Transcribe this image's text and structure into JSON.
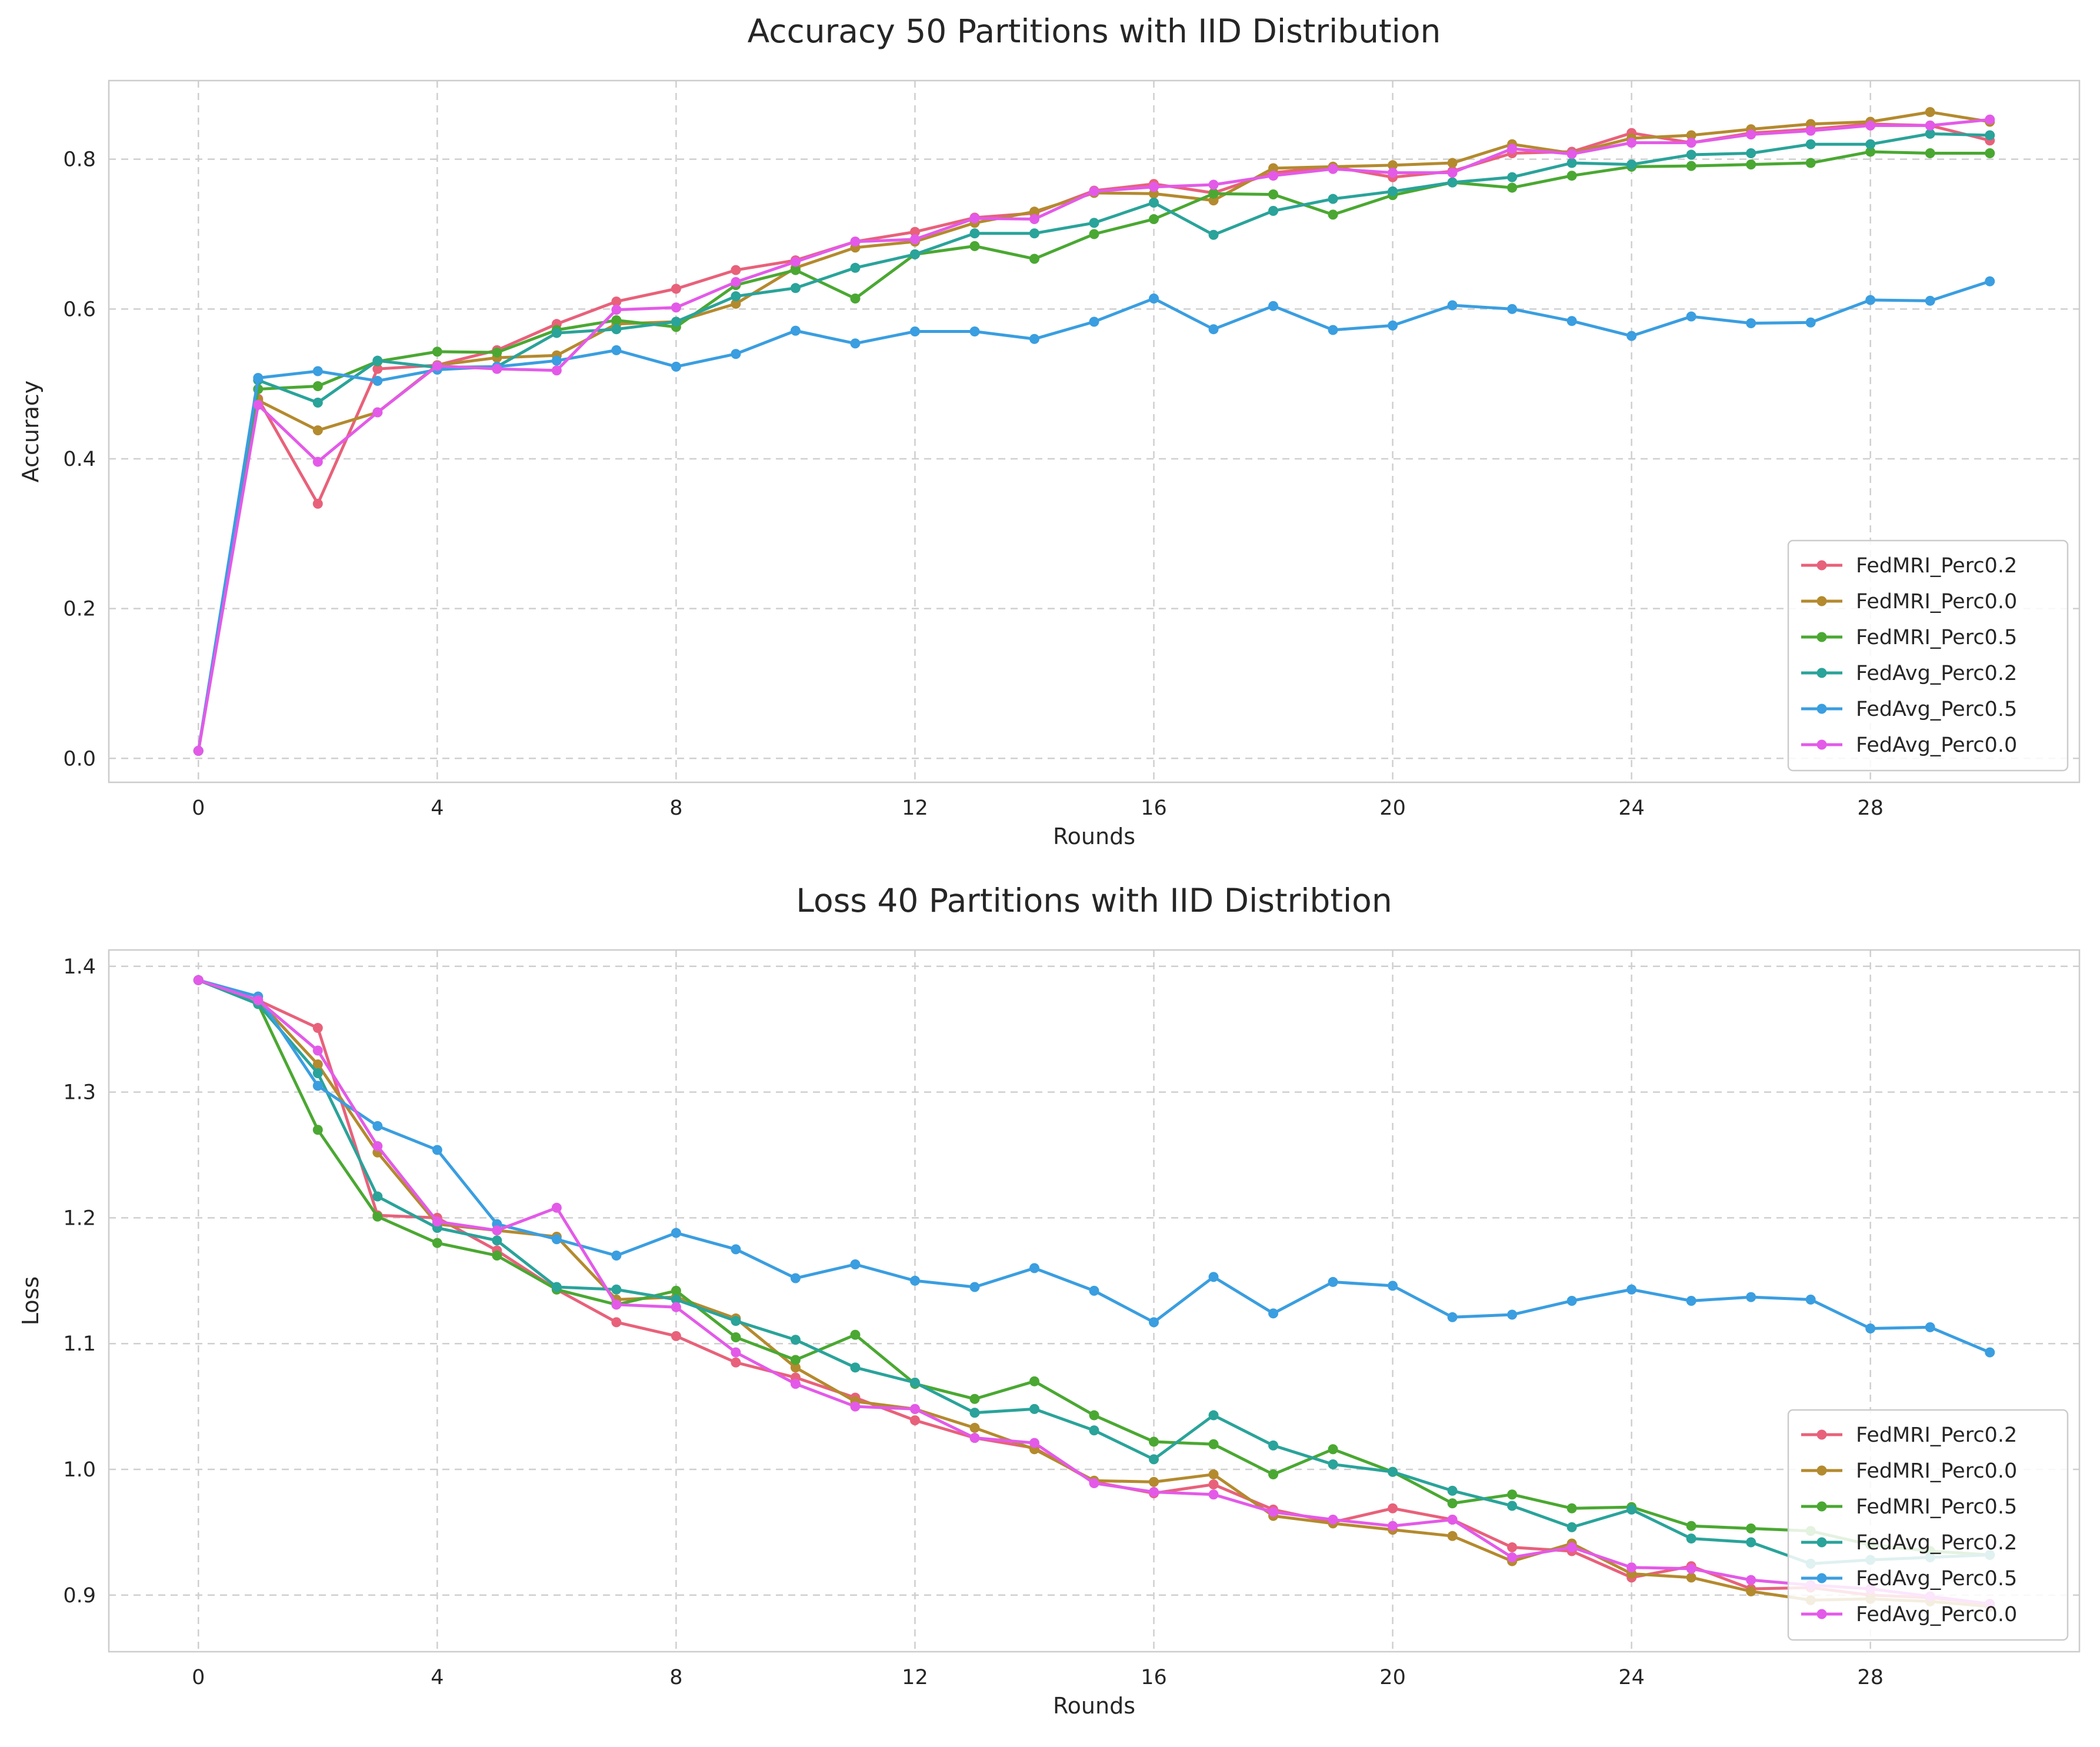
{
  "chart_data": [
    {
      "type": "line",
      "title": "Accuracy 50 Partitions with IID Distribution",
      "xlabel": "Rounds",
      "ylabel": "Accuracy",
      "xlim": [
        -1.5,
        31.5
      ],
      "ylim": [
        -0.032,
        0.905
      ],
      "xticks": [
        0,
        4,
        8,
        12,
        16,
        20,
        24,
        28
      ],
      "yticks": [
        0.0,
        0.2,
        0.4,
        0.6,
        0.8
      ],
      "ytick_labels": [
        "0.0",
        "0.2",
        "0.4",
        "0.6",
        "0.8"
      ],
      "grid": true,
      "legend_position": "lower-right",
      "x": [
        0,
        1,
        2,
        3,
        4,
        5,
        6,
        7,
        8,
        9,
        10,
        11,
        12,
        13,
        14,
        15,
        16,
        17,
        18,
        19,
        20,
        21,
        22,
        23,
        24,
        25,
        26,
        27,
        28,
        29,
        30
      ],
      "series": [
        {
          "name": "FedMRI_Perc0.2",
          "color": "#e8617a",
          "values": [
            0.01,
            0.48,
            0.34,
            0.52,
            0.525,
            0.545,
            0.58,
            0.61,
            0.627,
            0.652,
            0.665,
            0.69,
            0.703,
            0.722,
            0.728,
            0.758,
            0.767,
            0.755,
            0.782,
            0.79,
            0.776,
            0.784,
            0.808,
            0.81,
            0.835,
            0.822,
            0.835,
            0.84,
            0.847,
            0.845,
            0.825
          ]
        },
        {
          "name": "FedMRI_Perc0.0",
          "color": "#b48a2e",
          "values": [
            0.01,
            0.478,
            0.438,
            0.462,
            0.525,
            0.535,
            0.538,
            0.58,
            0.583,
            0.607,
            0.655,
            0.682,
            0.69,
            0.715,
            0.73,
            0.755,
            0.754,
            0.745,
            0.788,
            0.79,
            0.792,
            0.795,
            0.82,
            0.808,
            0.828,
            0.832,
            0.84,
            0.847,
            0.85,
            0.863,
            0.85
          ]
        },
        {
          "name": "FedMRI_Perc0.5",
          "color": "#4aa832",
          "values": [
            0.01,
            0.493,
            0.497,
            0.53,
            0.543,
            0.542,
            0.572,
            0.585,
            0.576,
            0.632,
            0.652,
            0.614,
            0.673,
            0.684,
            0.667,
            0.7,
            0.72,
            0.754,
            0.753,
            0.726,
            0.752,
            0.769,
            0.762,
            0.778,
            0.79,
            0.791,
            0.793,
            0.795,
            0.81,
            0.808,
            0.808
          ]
        },
        {
          "name": "FedAvg_Perc0.2",
          "color": "#2aa39a",
          "values": [
            0.01,
            0.505,
            0.475,
            0.531,
            0.522,
            0.523,
            0.568,
            0.573,
            0.583,
            0.617,
            0.628,
            0.655,
            0.673,
            0.701,
            0.701,
            0.715,
            0.742,
            0.699,
            0.731,
            0.747,
            0.757,
            0.769,
            0.776,
            0.795,
            0.793,
            0.806,
            0.808,
            0.82,
            0.82,
            0.834,
            0.832
          ]
        },
        {
          "name": "FedAvg_Perc0.5",
          "color": "#3a9ee0",
          "values": [
            0.01,
            0.508,
            0.517,
            0.504,
            0.519,
            0.523,
            0.531,
            0.545,
            0.523,
            0.54,
            0.571,
            0.554,
            0.57,
            0.57,
            0.56,
            0.583,
            0.614,
            0.573,
            0.604,
            0.572,
            0.578,
            0.605,
            0.6,
            0.584,
            0.564,
            0.59,
            0.581,
            0.582,
            0.612,
            0.611,
            0.637
          ]
        },
        {
          "name": "FedAvg_Perc0.0",
          "color": "#e35ae8",
          "values": [
            0.01,
            0.472,
            0.396,
            0.462,
            0.524,
            0.52,
            0.518,
            0.599,
            0.602,
            0.636,
            0.663,
            0.69,
            0.693,
            0.721,
            0.72,
            0.757,
            0.763,
            0.766,
            0.778,
            0.787,
            0.782,
            0.782,
            0.814,
            0.807,
            0.822,
            0.822,
            0.833,
            0.838,
            0.845,
            0.845,
            0.853
          ]
        }
      ]
    },
    {
      "type": "line",
      "title": "Loss 40 Partitions with IID Distribtion",
      "xlabel": "Rounds",
      "ylabel": "Loss",
      "xlim": [
        -1.5,
        31.5
      ],
      "ylim": [
        0.855,
        1.413
      ],
      "xticks": [
        0,
        4,
        8,
        12,
        16,
        20,
        24,
        28
      ],
      "yticks": [
        0.9,
        1.0,
        1.1,
        1.2,
        1.3,
        1.4
      ],
      "ytick_labels": [
        "0.9",
        "1.0",
        "1.1",
        "1.2",
        "1.3",
        "1.4"
      ],
      "grid": true,
      "legend_position": "lower-right",
      "x": [
        0,
        1,
        2,
        3,
        4,
        5,
        6,
        7,
        8,
        9,
        10,
        11,
        12,
        13,
        14,
        15,
        16,
        17,
        18,
        19,
        20,
        21,
        22,
        23,
        24,
        25,
        26,
        27,
        28,
        29,
        30
      ],
      "series": [
        {
          "name": "FedMRI_Perc0.2",
          "color": "#e8617a",
          "values": [
            1.389,
            1.373,
            1.351,
            1.202,
            1.2,
            1.174,
            1.143,
            1.117,
            1.106,
            1.085,
            1.073,
            1.057,
            1.039,
            1.025,
            1.017,
            0.99,
            0.981,
            0.988,
            0.968,
            0.958,
            0.969,
            0.96,
            0.938,
            0.935,
            0.914,
            0.923,
            0.905,
            0.906,
            0.9,
            0.898,
            0.893
          ]
        },
        {
          "name": "FedMRI_Perc0.0",
          "color": "#b48a2e",
          "values": [
            1.389,
            1.373,
            1.322,
            1.252,
            1.195,
            1.19,
            1.185,
            1.135,
            1.137,
            1.12,
            1.081,
            1.054,
            1.048,
            1.033,
            1.016,
            0.991,
            0.99,
            0.996,
            0.963,
            0.957,
            0.952,
            0.947,
            0.927,
            0.941,
            0.917,
            0.914,
            0.903,
            0.896,
            0.897,
            0.895,
            0.891
          ]
        },
        {
          "name": "FedMRI_Perc0.5",
          "color": "#4aa832",
          "values": [
            1.389,
            1.37,
            1.27,
            1.201,
            1.18,
            1.17,
            1.143,
            1.131,
            1.142,
            1.105,
            1.087,
            1.107,
            1.068,
            1.056,
            1.07,
            1.043,
            1.022,
            1.02,
            0.996,
            1.016,
            0.998,
            0.973,
            0.98,
            0.969,
            0.97,
            0.955,
            0.953,
            0.951,
            0.94,
            0.935,
            0.932
          ]
        },
        {
          "name": "FedAvg_Perc0.2",
          "color": "#2aa39a",
          "values": [
            1.389,
            1.37,
            1.315,
            1.217,
            1.192,
            1.182,
            1.145,
            1.143,
            1.135,
            1.118,
            1.103,
            1.081,
            1.069,
            1.045,
            1.048,
            1.031,
            1.008,
            1.043,
            1.019,
            1.004,
            0.998,
            0.983,
            0.971,
            0.954,
            0.968,
            0.945,
            0.942,
            0.925,
            0.928,
            0.93,
            0.932
          ]
        },
        {
          "name": "FedAvg_Perc0.5",
          "color": "#3a9ee0",
          "values": [
            1.389,
            1.376,
            1.305,
            1.273,
            1.254,
            1.195,
            1.183,
            1.17,
            1.188,
            1.175,
            1.152,
            1.163,
            1.15,
            1.145,
            1.16,
            1.142,
            1.117,
            1.153,
            1.124,
            1.149,
            1.146,
            1.121,
            1.123,
            1.134,
            1.143,
            1.134,
            1.137,
            1.135,
            1.112,
            1.113,
            1.093
          ]
        },
        {
          "name": "FedAvg_Perc0.0",
          "color": "#e35ae8",
          "values": [
            1.389,
            1.373,
            1.333,
            1.257,
            1.197,
            1.19,
            1.208,
            1.131,
            1.129,
            1.093,
            1.068,
            1.05,
            1.048,
            1.025,
            1.021,
            0.989,
            0.982,
            0.98,
            0.966,
            0.96,
            0.955,
            0.96,
            0.93,
            0.938,
            0.922,
            0.921,
            0.912,
            0.908,
            0.905,
            0.899,
            0.893
          ]
        }
      ]
    }
  ]
}
